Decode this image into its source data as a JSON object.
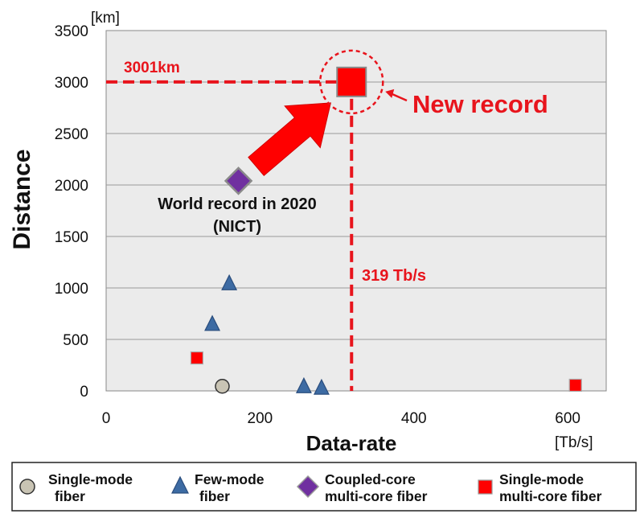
{
  "chart_data": {
    "type": "scatter",
    "xlabel": "Data-rate",
    "xunit": "[Tb/s]",
    "ylabel": "Distance",
    "yunit": "[km]",
    "xlim": [
      0,
      650
    ],
    "ylim": [
      0,
      3500
    ],
    "xticks": [
      0,
      200,
      400,
      600
    ],
    "yticks": [
      0,
      500,
      1000,
      1500,
      2000,
      2500,
      3000,
      3500
    ],
    "grid": "horizontal",
    "legend_position": "bottom",
    "series": [
      {
        "name": "Single-mode fiber",
        "marker": "circle",
        "color": "#c9c4b4",
        "points": [
          {
            "x": 151,
            "y": 45
          }
        ]
      },
      {
        "name": "Few-mode fiber",
        "marker": "triangle",
        "color": "#3d6ba3",
        "points": [
          {
            "x": 138,
            "y": 650
          },
          {
            "x": 160,
            "y": 1045
          },
          {
            "x": 257,
            "y": 45
          },
          {
            "x": 280,
            "y": 30
          }
        ]
      },
      {
        "name": "Coupled-core multi-core fiber",
        "marker": "diamond",
        "color": "#7030a0",
        "points": [
          {
            "x": 172,
            "y": 2040
          }
        ]
      },
      {
        "name": "Single-mode multi-core fiber",
        "marker": "square",
        "color": "#ff0000",
        "points": [
          {
            "x": 118,
            "y": 320
          },
          {
            "x": 610,
            "y": 55
          },
          {
            "x": 319,
            "y": 3001
          }
        ]
      }
    ],
    "annotations": {
      "distance_label": "3001km",
      "rate_label": "319 Tb/s",
      "new_record": "New record",
      "world_record_line1": "World record in 2020",
      "world_record_line2": "(NICT)",
      "record_distance_km": 3001,
      "record_rate_tbs": 319,
      "prev_record_point": {
        "x": 172,
        "y": 2040
      }
    }
  },
  "legend": [
    {
      "line1": "Single-mode",
      "line2": "fiber",
      "marker": "circle",
      "color": "#c9c4b4"
    },
    {
      "line1": "Few-mode",
      "line2": "fiber",
      "marker": "triangle",
      "color": "#3d6ba3"
    },
    {
      "line1": "Coupled-core",
      "line2": "multi-core fiber",
      "marker": "diamond",
      "color": "#7030a0"
    },
    {
      "line1": "Single-mode",
      "line2": "multi-core fiber",
      "marker": "square",
      "color": "#ff0000"
    }
  ],
  "colors": {
    "accent_red": "#e8141c",
    "plot_background": "#ebebeb",
    "grid": "#9a9a9a"
  }
}
